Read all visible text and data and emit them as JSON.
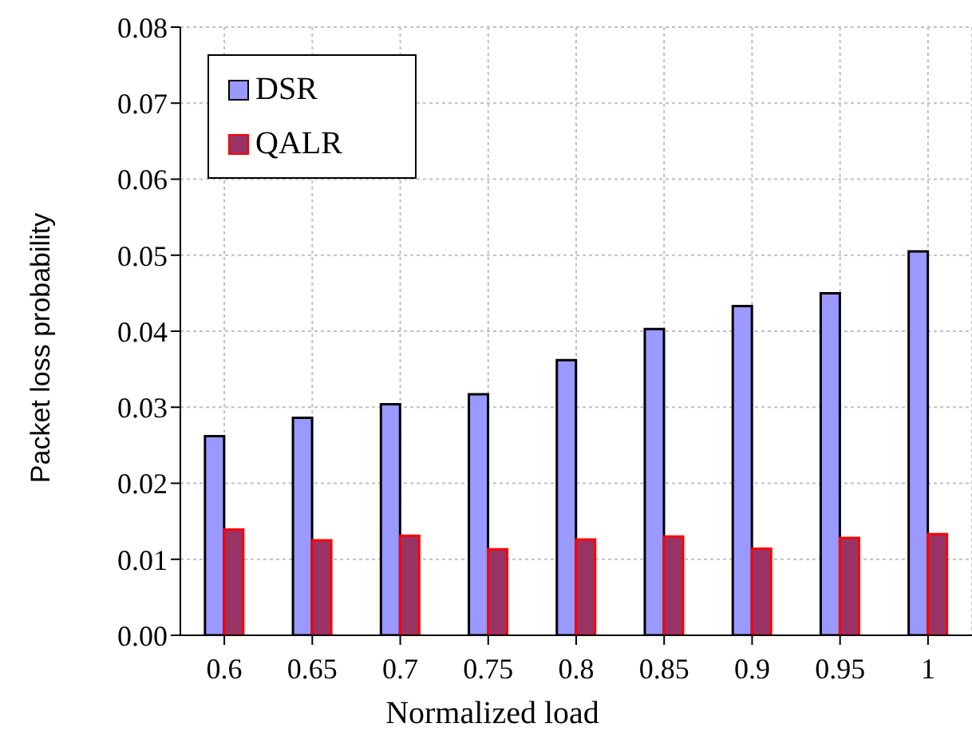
{
  "chart_data": {
    "type": "bar",
    "xlabel": "Normalized load",
    "ylabel": "Packet loss probability",
    "categories": [
      "0.6",
      "0.65",
      "0.7",
      "0.75",
      "0.8",
      "0.85",
      "0.9",
      "0.95",
      "1"
    ],
    "series": [
      {
        "name": "DSR",
        "color": "#9999ff",
        "values": [
          0.0262,
          0.0286,
          0.0304,
          0.0317,
          0.0362,
          0.0403,
          0.0433,
          0.045,
          0.0505
        ]
      },
      {
        "name": "QALR",
        "color": "#993366",
        "values": [
          0.0139,
          0.0125,
          0.0131,
          0.0113,
          0.0126,
          0.013,
          0.0114,
          0.0128,
          0.0133
        ]
      }
    ],
    "ylim": [
      0,
      0.08
    ],
    "yticks": [
      {
        "value": 0,
        "label": "0.00"
      },
      {
        "value": 0.01,
        "label": "0.01"
      },
      {
        "value": 0.02,
        "label": "0.02"
      },
      {
        "value": 0.03,
        "label": "0.03"
      },
      {
        "value": 0.04,
        "label": "0.04"
      },
      {
        "value": 0.05,
        "label": "0.05"
      },
      {
        "value": 0.06,
        "label": "0.06"
      },
      {
        "value": 0.07,
        "label": "0.07"
      },
      {
        "value": 0.08,
        "label": "0.08"
      }
    ],
    "grid": true,
    "legend": "top left"
  }
}
